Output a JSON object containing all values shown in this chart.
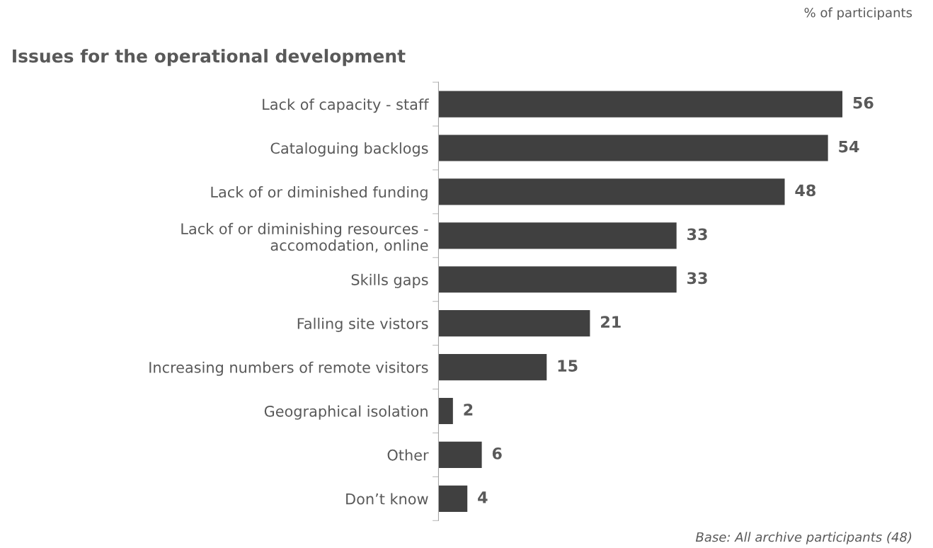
{
  "chart_data": {
    "type": "bar",
    "orientation": "horizontal",
    "title": "Issues for the operational development",
    "categories": [
      "Lack of capacity - staff",
      "Cataloguing backlogs",
      "Lack of or diminished funding",
      "Lack of or diminishing resources -\naccomodation, online",
      "Skills gaps",
      "Falling site vistors",
      "Increasing numbers of remote visitors",
      "Geographical isolation",
      "Other",
      "Don’t know"
    ],
    "values": [
      56,
      54,
      48,
      33,
      33,
      21,
      15,
      2,
      6,
      4
    ],
    "color": "#404040",
    "data_labels": true,
    "grid": false,
    "legend": false,
    "annotations": [
      "% of participants",
      "Base: All archive participants (48)"
    ]
  }
}
